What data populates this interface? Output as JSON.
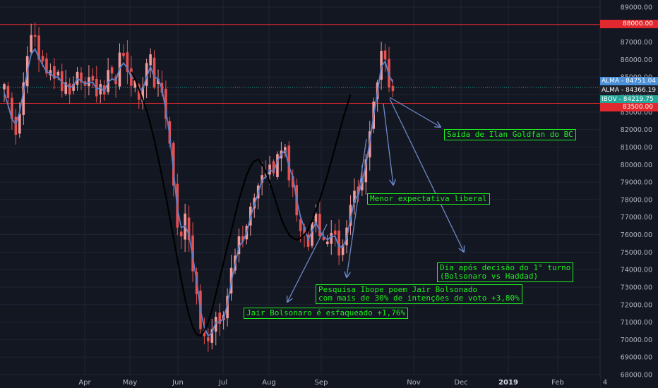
{
  "chart_data": {
    "type": "candlestick",
    "symbol": "IBOV",
    "y_ticks": [
      68000,
      69000,
      70000,
      71000,
      72000,
      73000,
      74000,
      75000,
      76000,
      77000,
      78000,
      79000,
      80000,
      81000,
      82000,
      83000,
      84000,
      85000,
      86000,
      87000,
      88000,
      89000
    ],
    "y_tick_labels": [
      "68000.00",
      "69000.00",
      "70000.00",
      "71000.00",
      "72000.00",
      "73000.00",
      "74000.00",
      "75000.00",
      "76000.00",
      "77000.00",
      "78000.00",
      "79000.00",
      "80000.00",
      "81000.00",
      "82000.00",
      "83000.00",
      "84000.00",
      "85000.00",
      "86000.00",
      "87000.00",
      "88000.00",
      "89000.00"
    ],
    "x_tick_labels": [
      "Apr",
      "May",
      "Jun",
      "Jul",
      "Aug",
      "Sep",
      "Nov",
      "Dec",
      "2019",
      "Feb",
      "4"
    ],
    "horizontal_levels": [
      {
        "value": 88000,
        "label": "88000.00",
        "color": "#e0282e"
      },
      {
        "value": 83500,
        "label": "83500.00",
        "color": "#e0282e"
      }
    ],
    "price_tags": [
      {
        "label": "ALMA",
        "value": "84751.04",
        "color": "#4a90d9"
      },
      {
        "label": "ALMA",
        "value": "84366.19",
        "color": "#1e222d"
      },
      {
        "label": "IBOV",
        "value": "84219.75",
        "color": "#26a69a"
      }
    ],
    "closes": [
      84600,
      83800,
      82600,
      81700,
      82900,
      84700,
      86200,
      87400,
      87300,
      86000,
      85900,
      85200,
      85400,
      84900,
      85300,
      84200,
      84700,
      84000,
      84600,
      85300,
      84700,
      84500,
      85000,
      84800,
      83900,
      84600,
      84000,
      85400,
      85200,
      84600,
      86400,
      86200,
      85300,
      84500,
      84800,
      83700,
      84400,
      85800,
      86300,
      84400,
      84900,
      84100,
      82600,
      81200,
      78800,
      76400,
      75900,
      77200,
      75700,
      73900,
      72600,
      70600,
      70200,
      69900,
      70600,
      71300,
      70900,
      71400,
      72500,
      74100,
      74800,
      75900,
      75600,
      76500,
      77600,
      78100,
      78800,
      79400,
      79300,
      80000,
      79500,
      80600,
      80800,
      81000,
      79100,
      78700,
      77100,
      76200,
      76000,
      75300,
      76700,
      77200,
      75900,
      75700,
      75600,
      76100,
      76000,
      74800,
      75400,
      76400,
      77700,
      78500,
      78300,
      79200,
      80300,
      81900,
      83600,
      84700,
      86500,
      86000,
      84400,
      84200
    ],
    "series": [
      {
        "name": "ALMA",
        "color": "#5b7fc7",
        "values": [
          84100,
          83400,
          82600,
          82300,
          83000,
          84200,
          85300,
          86300,
          86600,
          86100,
          85700,
          85300,
          85200,
          85000,
          85000,
          84700,
          84600,
          84400,
          84500,
          84900,
          84800,
          84600,
          84700,
          84700,
          84300,
          84400,
          84200,
          84700,
          84900,
          84800,
          85500,
          85800,
          85500,
          85000,
          84900,
          84300,
          84300,
          85000,
          85600,
          85000,
          84900,
          84300,
          83100,
          81700,
          79600,
          77500,
          76400,
          76500,
          76000,
          74700,
          73400,
          71700,
          70700,
          70200,
          70400,
          71000,
          71000,
          71200,
          72000,
          73300,
          74300,
          75300,
          75600,
          76100,
          77000,
          77700,
          78400,
          79100,
          79300,
          79700,
          79600,
          80200,
          80600,
          80800,
          79900,
          79300,
          78000,
          77000,
          76400,
          75700,
          76200,
          76700,
          76200,
          75900,
          75700,
          75900,
          75900,
          75300,
          75300,
          75800,
          76900,
          77900,
          78300,
          79000,
          80000,
          81300,
          82800,
          84100,
          85600,
          85900,
          85100,
          84700
        ]
      },
      {
        "name": "",
        "color": "#000000",
        "values": [
          null,
          null,
          null,
          null,
          null,
          null,
          null,
          null,
          null,
          null,
          null,
          null,
          null,
          null,
          null,
          null,
          null,
          null,
          null,
          null,
          null,
          null,
          null,
          null,
          null,
          null,
          null,
          null,
          null,
          null,
          null,
          null,
          null,
          85300,
          84900,
          84300,
          83700,
          83100,
          82300,
          81400,
          80400,
          79300,
          78200,
          77000,
          75800,
          74600,
          73400,
          72300,
          71400,
          70700,
          70300,
          70200,
          70500,
          71000,
          71700,
          72600,
          73500,
          74400,
          75300,
          76200,
          77100,
          78000,
          78700,
          79400,
          79900,
          80200,
          80300,
          80000,
          79600,
          79000,
          78300,
          77600,
          76900,
          76400,
          76000,
          75800,
          75700,
          75800,
          76000,
          76300,
          76800,
          77400,
          78000,
          78700,
          79400,
          80200,
          81000,
          81800,
          82600,
          83300,
          84000
        ]
      }
    ],
    "ylim": [
      68000,
      89600
    ],
    "annotations": [
      "Saída de Ilan Goldfan do BC",
      "Menor expectativa liberal",
      "Dia após decisão do 1° turno\n(Bolsonaro vs Haddad)",
      "Pesquisa Ibope poem Jair Bolsonado\ncom mais de 30% de intenções de voto +3,80%",
      "Jair Bolsonaro é esfaqueado +1,76%"
    ]
  },
  "colors": {
    "background": "#131722",
    "grid": "#1f2433",
    "up": "#ef9a9a",
    "down": "#e84f4f",
    "axis_text": "#b2b5be",
    "annotation": "#1ef01e",
    "arrow": "#6d88c8"
  }
}
